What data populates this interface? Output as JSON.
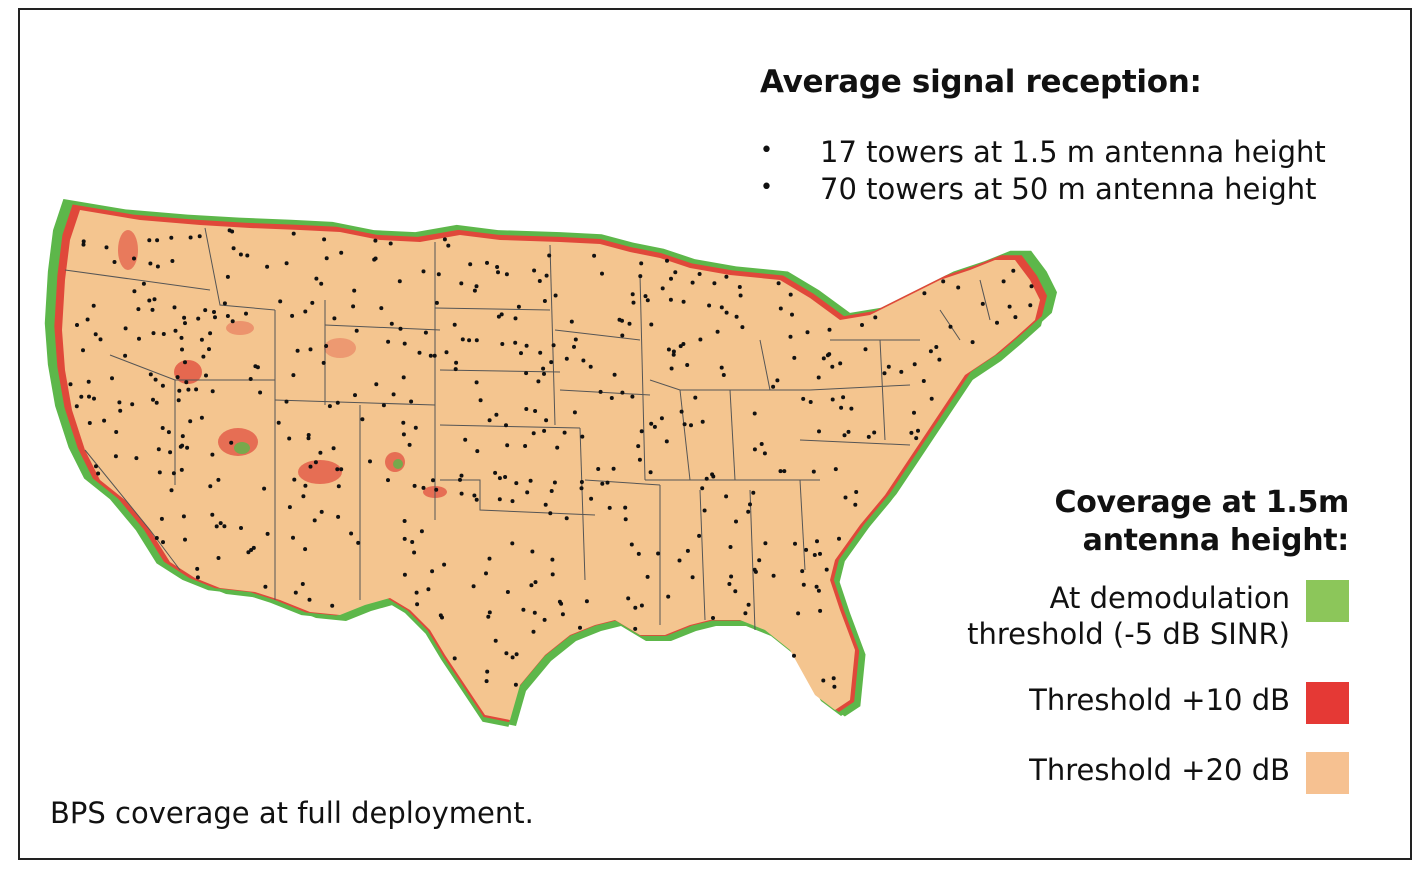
{
  "header": {
    "title": "Average signal reception:",
    "bullets": [
      "17 towers at 1.5 m antenna height",
      "70 towers at 50 m antenna height"
    ]
  },
  "legend": {
    "title_line1": "Coverage at 1.5m",
    "title_line2": "antenna height:",
    "items": [
      {
        "label_line1": "At demodulation",
        "label_line2": "threshold (-5 dB SINR)",
        "color": "#8cc65a"
      },
      {
        "label_line1": "Threshold +10 dB",
        "color": "#e53935"
      },
      {
        "label_line1": "Threshold +20 dB",
        "color": "#f6c191"
      }
    ]
  },
  "map": {
    "colors": {
      "land": "#f4c58f",
      "fringe_red": "#e0483a",
      "fringe_green": "#5db74a",
      "towers": "#111111",
      "borders": "#555555"
    }
  },
  "caption": "BPS coverage at full deployment."
}
